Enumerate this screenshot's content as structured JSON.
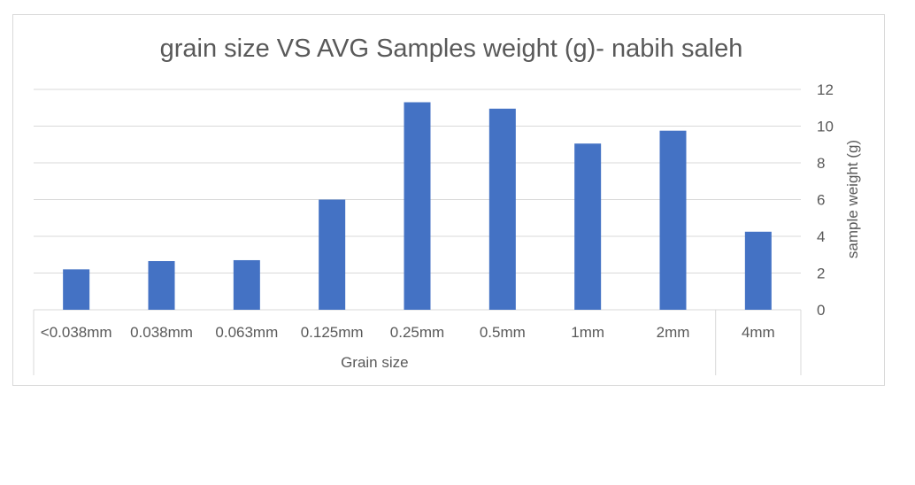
{
  "chart_data": {
    "type": "bar",
    "title": "grain size VS AVG Samples weight (g)- nabih saleh",
    "categories": [
      "<0.038mm",
      "0.038mm",
      "0.063mm",
      "0.125mm",
      "0.25mm",
      "0.5mm",
      "1mm",
      "2mm",
      "4mm"
    ],
    "category_groups": [
      {
        "label": "Grain size",
        "categories": [
          "<0.038mm",
          "0.038mm",
          "0.063mm",
          "0.125mm",
          "0.25mm",
          "0.5mm",
          "1mm",
          "2mm"
        ]
      },
      {
        "label": "",
        "categories": [
          "4mm"
        ]
      }
    ],
    "values": [
      2.2,
      2.65,
      2.7,
      6.0,
      11.3,
      10.95,
      9.05,
      9.75,
      4.25
    ],
    "ylabel": "sample weight (g)",
    "y_axis_side": "right",
    "ylim": [
      0,
      12
    ],
    "yticks": [
      "0",
      "2",
      "4",
      "6",
      "8",
      "10",
      "12"
    ],
    "grid": true,
    "legend": "none",
    "bar_color": "#4472c4"
  }
}
